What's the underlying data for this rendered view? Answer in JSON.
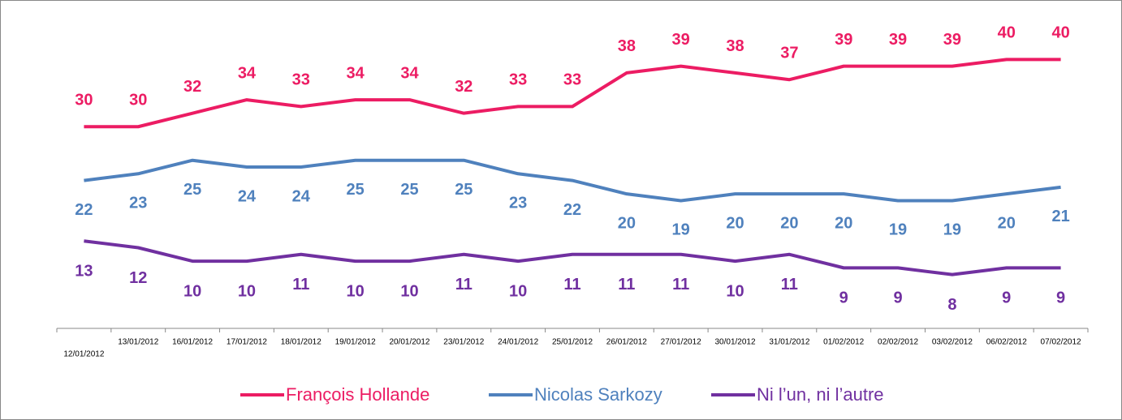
{
  "chart_data": {
    "type": "line",
    "categories": [
      "12/01/2012",
      "13/01/2012",
      "16/01/2012",
      "17/01/2012",
      "18/01/2012",
      "19/01/2012",
      "20/01/2012",
      "23/01/2012",
      "24/01/2012",
      "25/01/2012",
      "26/01/2012",
      "27/01/2012",
      "30/01/2012",
      "31/01/2012",
      "01/02/2012",
      "02/02/2012",
      "03/02/2012",
      "06/02/2012",
      "07/02/2012"
    ],
    "series": [
      {
        "name": "François Hollande",
        "color": "#ec1c63",
        "values": [
          30,
          30,
          32,
          34,
          33,
          34,
          34,
          32,
          33,
          33,
          38,
          39,
          38,
          37,
          39,
          39,
          39,
          40,
          40
        ]
      },
      {
        "name": "Nicolas Sarkozy",
        "color": "#4f81bd",
        "values": [
          22,
          23,
          25,
          24,
          24,
          25,
          25,
          25,
          23,
          22,
          20,
          19,
          20,
          20,
          20,
          19,
          19,
          20,
          21
        ]
      },
      {
        "name": "Ni l’un, ni l’autre",
        "color": "#7030a0",
        "values": [
          13,
          12,
          10,
          10,
          11,
          10,
          10,
          11,
          10,
          11,
          11,
          11,
          10,
          11,
          9,
          9,
          8,
          9,
          9
        ]
      }
    ],
    "ylim": [
      0,
      48
    ]
  }
}
